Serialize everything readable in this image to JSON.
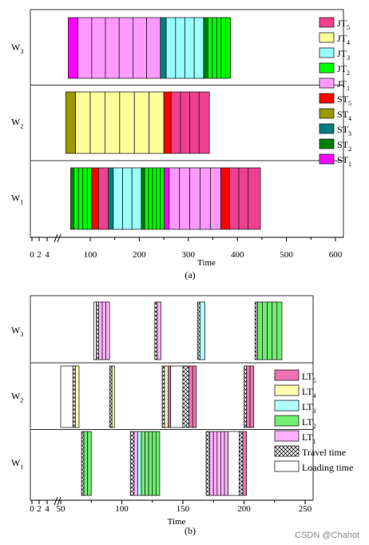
{
  "colors": {
    "JT5": "#ef3f8f",
    "JT4": "#ffff99",
    "JT3": "#99ffff",
    "JT2": "#00ff00",
    "JT1": "#ff99ff",
    "ST5": "#ff0000",
    "ST4": "#999900",
    "ST3": "#007f7f",
    "ST2": "#008000",
    "ST1": "#ff00ff",
    "LT5": "#f070b0",
    "LT4": "#ffffb0",
    "LT3": "#b0ffff",
    "LT2": "#70ee70",
    "LT1": "#ffb0ff",
    "travel": "#ffffff",
    "loading": "#ffffff"
  },
  "watermark": "CSDN @Chahot",
  "chart_data": [
    {
      "type": "gantt",
      "panel_label": "(a)",
      "xlabel": "Time",
      "xlim": [
        0,
        600
      ],
      "axis_break": true,
      "small_ticks": [
        "0",
        "2",
        "4"
      ],
      "ticks": [
        100,
        200,
        300,
        400,
        500,
        600
      ],
      "tick_labels": [
        "100",
        "200",
        "300",
        "400",
        "500",
        "600"
      ],
      "rows": [
        {
          "label": "W",
          "sub": "3"
        },
        {
          "label": "W",
          "sub": "2"
        },
        {
          "label": "W",
          "sub": "1"
        }
      ],
      "legend": [
        {
          "key": "JT5",
          "label": "JT",
          "sub": "5"
        },
        {
          "key": "JT4",
          "label": "JT",
          "sub": "4"
        },
        {
          "key": "JT3",
          "label": "JT",
          "sub": "3"
        },
        {
          "key": "JT2",
          "label": "JT",
          "sub": "2"
        },
        {
          "key": "JT1",
          "label": "JT",
          "sub": "1"
        },
        {
          "key": "ST5",
          "label": "ST",
          "sub": "5"
        },
        {
          "key": "ST4",
          "label": "ST",
          "sub": "4"
        },
        {
          "key": "ST3",
          "label": "ST",
          "sub": "3"
        },
        {
          "key": "ST2",
          "label": "ST",
          "sub": "2"
        },
        {
          "key": "ST1",
          "label": "ST",
          "sub": "1"
        }
      ],
      "bars": [
        {
          "row": 0,
          "start": 55,
          "end": 75,
          "key": "ST1"
        },
        {
          "row": 0,
          "start": 75,
          "end": 103,
          "key": "JT1"
        },
        {
          "row": 0,
          "start": 103,
          "end": 131,
          "key": "JT1"
        },
        {
          "row": 0,
          "start": 131,
          "end": 159,
          "key": "JT1"
        },
        {
          "row": 0,
          "start": 159,
          "end": 187,
          "key": "JT1"
        },
        {
          "row": 0,
          "start": 187,
          "end": 215,
          "key": "JT1"
        },
        {
          "row": 0,
          "start": 215,
          "end": 243,
          "key": "JT1"
        },
        {
          "row": 0,
          "start": 243,
          "end": 255,
          "key": "ST3"
        },
        {
          "row": 0,
          "start": 255,
          "end": 274,
          "key": "JT3"
        },
        {
          "row": 0,
          "start": 274,
          "end": 293,
          "key": "JT3"
        },
        {
          "row": 0,
          "start": 293,
          "end": 312,
          "key": "JT3"
        },
        {
          "row": 0,
          "start": 312,
          "end": 331,
          "key": "JT3"
        },
        {
          "row": 0,
          "start": 331,
          "end": 340,
          "key": "ST2"
        },
        {
          "row": 0,
          "start": 340,
          "end": 349,
          "key": "JT2"
        },
        {
          "row": 0,
          "start": 349,
          "end": 358,
          "key": "JT2"
        },
        {
          "row": 0,
          "start": 358,
          "end": 367,
          "key": "JT2"
        },
        {
          "row": 0,
          "start": 367,
          "end": 376,
          "key": "JT2"
        },
        {
          "row": 0,
          "start": 376,
          "end": 386,
          "key": "JT2"
        },
        {
          "row": 1,
          "start": 50,
          "end": 70,
          "key": "ST4"
        },
        {
          "row": 1,
          "start": 70,
          "end": 100,
          "key": "JT4"
        },
        {
          "row": 1,
          "start": 100,
          "end": 130,
          "key": "JT4"
        },
        {
          "row": 1,
          "start": 130,
          "end": 160,
          "key": "JT4"
        },
        {
          "row": 1,
          "start": 160,
          "end": 190,
          "key": "JT4"
        },
        {
          "row": 1,
          "start": 190,
          "end": 220,
          "key": "JT4"
        },
        {
          "row": 1,
          "start": 220,
          "end": 250,
          "key": "JT4"
        },
        {
          "row": 1,
          "start": 250,
          "end": 265,
          "key": "ST5"
        },
        {
          "row": 1,
          "start": 265,
          "end": 284,
          "key": "JT5"
        },
        {
          "row": 1,
          "start": 284,
          "end": 303,
          "key": "JT5"
        },
        {
          "row": 1,
          "start": 303,
          "end": 322,
          "key": "JT5"
        },
        {
          "row": 1,
          "start": 322,
          "end": 343,
          "key": "JT5"
        },
        {
          "row": 2,
          "start": 60,
          "end": 67,
          "key": "ST2"
        },
        {
          "row": 2,
          "start": 67,
          "end": 76,
          "key": "JT2"
        },
        {
          "row": 2,
          "start": 76,
          "end": 85,
          "key": "JT2"
        },
        {
          "row": 2,
          "start": 85,
          "end": 94,
          "key": "JT2"
        },
        {
          "row": 2,
          "start": 94,
          "end": 103,
          "key": "JT2"
        },
        {
          "row": 2,
          "start": 103,
          "end": 117,
          "key": "ST5"
        },
        {
          "row": 2,
          "start": 117,
          "end": 137,
          "key": "JT5"
        },
        {
          "row": 2,
          "start": 137,
          "end": 147,
          "key": "ST3"
        },
        {
          "row": 2,
          "start": 147,
          "end": 166,
          "key": "JT3"
        },
        {
          "row": 2,
          "start": 166,
          "end": 185,
          "key": "JT3"
        },
        {
          "row": 2,
          "start": 185,
          "end": 204,
          "key": "JT3"
        },
        {
          "row": 2,
          "start": 204,
          "end": 211,
          "key": "ST2"
        },
        {
          "row": 2,
          "start": 211,
          "end": 219,
          "key": "JT2"
        },
        {
          "row": 2,
          "start": 219,
          "end": 227,
          "key": "JT2"
        },
        {
          "row": 2,
          "start": 227,
          "end": 235,
          "key": "JT2"
        },
        {
          "row": 2,
          "start": 235,
          "end": 243,
          "key": "JT2"
        },
        {
          "row": 2,
          "start": 243,
          "end": 251,
          "key": "JT2"
        },
        {
          "row": 2,
          "start": 251,
          "end": 261,
          "key": "ST1"
        },
        {
          "row": 2,
          "start": 261,
          "end": 282,
          "key": "JT1"
        },
        {
          "row": 2,
          "start": 282,
          "end": 303,
          "key": "JT1"
        },
        {
          "row": 2,
          "start": 303,
          "end": 324,
          "key": "JT1"
        },
        {
          "row": 2,
          "start": 324,
          "end": 345,
          "key": "JT1"
        },
        {
          "row": 2,
          "start": 345,
          "end": 366,
          "key": "JT1"
        },
        {
          "row": 2,
          "start": 366,
          "end": 384,
          "key": "ST5"
        },
        {
          "row": 2,
          "start": 384,
          "end": 403,
          "key": "JT5"
        },
        {
          "row": 2,
          "start": 403,
          "end": 422,
          "key": "JT5"
        },
        {
          "row": 2,
          "start": 422,
          "end": 447,
          "key": "JT5"
        }
      ]
    },
    {
      "type": "gantt",
      "panel_label": "(b)",
      "xlabel": "Time",
      "xlim": [
        0,
        250
      ],
      "axis_break": true,
      "small_ticks": [
        "0",
        "2",
        "4"
      ],
      "ticks": [
        50,
        100,
        150,
        200,
        250
      ],
      "tick_labels": [
        "50",
        "100",
        "150",
        "200",
        "250"
      ],
      "rows": [
        {
          "label": "W",
          "sub": "3"
        },
        {
          "label": "W",
          "sub": "2"
        },
        {
          "label": "W",
          "sub": "1"
        }
      ],
      "legend": [
        {
          "key": "LT5",
          "label": "LT",
          "sub": "5"
        },
        {
          "key": "LT4",
          "label": "LT",
          "sub": "4"
        },
        {
          "key": "LT3",
          "label": "LT",
          "sub": "3"
        },
        {
          "key": "LT2",
          "label": "LT",
          "sub": "2"
        },
        {
          "key": "LT1",
          "label": "LT",
          "sub": "1"
        },
        {
          "key": "travel",
          "label": "Travel time",
          "sub": ""
        },
        {
          "key": "loading",
          "label": "Loading time",
          "sub": ""
        }
      ],
      "bars": [
        {
          "row": 0,
          "start": 77,
          "end": 79,
          "key": "loading"
        },
        {
          "row": 0,
          "start": 79,
          "end": 81,
          "key": "travel"
        },
        {
          "row": 0,
          "start": 81,
          "end": 84,
          "key": "LT1"
        },
        {
          "row": 0,
          "start": 84,
          "end": 87,
          "key": "LT1"
        },
        {
          "row": 0,
          "start": 87,
          "end": 90,
          "key": "LT1"
        },
        {
          "row": 0,
          "start": 127,
          "end": 129,
          "key": "travel"
        },
        {
          "row": 0,
          "start": 129,
          "end": 132,
          "key": "LT1"
        },
        {
          "row": 0,
          "start": 162,
          "end": 164,
          "key": "travel"
        },
        {
          "row": 0,
          "start": 164,
          "end": 168,
          "key": "LT3"
        },
        {
          "row": 0,
          "start": 209,
          "end": 211,
          "key": "travel"
        },
        {
          "row": 0,
          "start": 211,
          "end": 215,
          "key": "LT2"
        },
        {
          "row": 0,
          "start": 215,
          "end": 219,
          "key": "LT2"
        },
        {
          "row": 0,
          "start": 219,
          "end": 223,
          "key": "LT2"
        },
        {
          "row": 0,
          "start": 223,
          "end": 227,
          "key": "LT2"
        },
        {
          "row": 0,
          "start": 227,
          "end": 231,
          "key": "LT2"
        },
        {
          "row": 1,
          "start": 50,
          "end": 60,
          "key": "loading"
        },
        {
          "row": 1,
          "start": 60,
          "end": 62,
          "key": "travel"
        },
        {
          "row": 1,
          "start": 62,
          "end": 65,
          "key": "LT4"
        },
        {
          "row": 1,
          "start": 90,
          "end": 92,
          "key": "travel"
        },
        {
          "row": 1,
          "start": 92,
          "end": 94,
          "key": "LT4"
        },
        {
          "row": 1,
          "start": 133,
          "end": 135,
          "key": "travel"
        },
        {
          "row": 1,
          "start": 135,
          "end": 138,
          "key": "LT4"
        },
        {
          "row": 1,
          "start": 138,
          "end": 140,
          "key": "LT5"
        },
        {
          "row": 1,
          "start": 140,
          "end": 150,
          "key": "loading"
        },
        {
          "row": 1,
          "start": 150,
          "end": 155,
          "key": "travel"
        },
        {
          "row": 1,
          "start": 155,
          "end": 158,
          "key": "LT5"
        },
        {
          "row": 1,
          "start": 158,
          "end": 161,
          "key": "LT5"
        },
        {
          "row": 1,
          "start": 200,
          "end": 202,
          "key": "travel"
        },
        {
          "row": 1,
          "start": 202,
          "end": 205,
          "key": "LT5"
        },
        {
          "row": 1,
          "start": 205,
          "end": 208,
          "key": "LT5"
        },
        {
          "row": 2,
          "start": 67,
          "end": 69,
          "key": "travel"
        },
        {
          "row": 2,
          "start": 69,
          "end": 72,
          "key": "LT2"
        },
        {
          "row": 2,
          "start": 72,
          "end": 75,
          "key": "LT2"
        },
        {
          "row": 2,
          "start": 107,
          "end": 110,
          "key": "travel"
        },
        {
          "row": 2,
          "start": 110,
          "end": 113,
          "key": "LT1"
        },
        {
          "row": 2,
          "start": 113,
          "end": 116,
          "key": "LT3"
        },
        {
          "row": 2,
          "start": 116,
          "end": 119,
          "key": "LT2"
        },
        {
          "row": 2,
          "start": 119,
          "end": 122,
          "key": "LT2"
        },
        {
          "row": 2,
          "start": 122,
          "end": 125,
          "key": "LT2"
        },
        {
          "row": 2,
          "start": 125,
          "end": 128,
          "key": "LT2"
        },
        {
          "row": 2,
          "start": 128,
          "end": 131,
          "key": "LT2"
        },
        {
          "row": 2,
          "start": 169,
          "end": 172,
          "key": "travel"
        },
        {
          "row": 2,
          "start": 172,
          "end": 175,
          "key": "LT1"
        },
        {
          "row": 2,
          "start": 175,
          "end": 178,
          "key": "LT1"
        },
        {
          "row": 2,
          "start": 178,
          "end": 181,
          "key": "LT1"
        },
        {
          "row": 2,
          "start": 181,
          "end": 184,
          "key": "LT1"
        },
        {
          "row": 2,
          "start": 184,
          "end": 187,
          "key": "LT1"
        },
        {
          "row": 2,
          "start": 187,
          "end": 196,
          "key": "loading"
        },
        {
          "row": 2,
          "start": 196,
          "end": 199,
          "key": "travel"
        },
        {
          "row": 2,
          "start": 199,
          "end": 202,
          "key": "LT5"
        }
      ]
    }
  ]
}
